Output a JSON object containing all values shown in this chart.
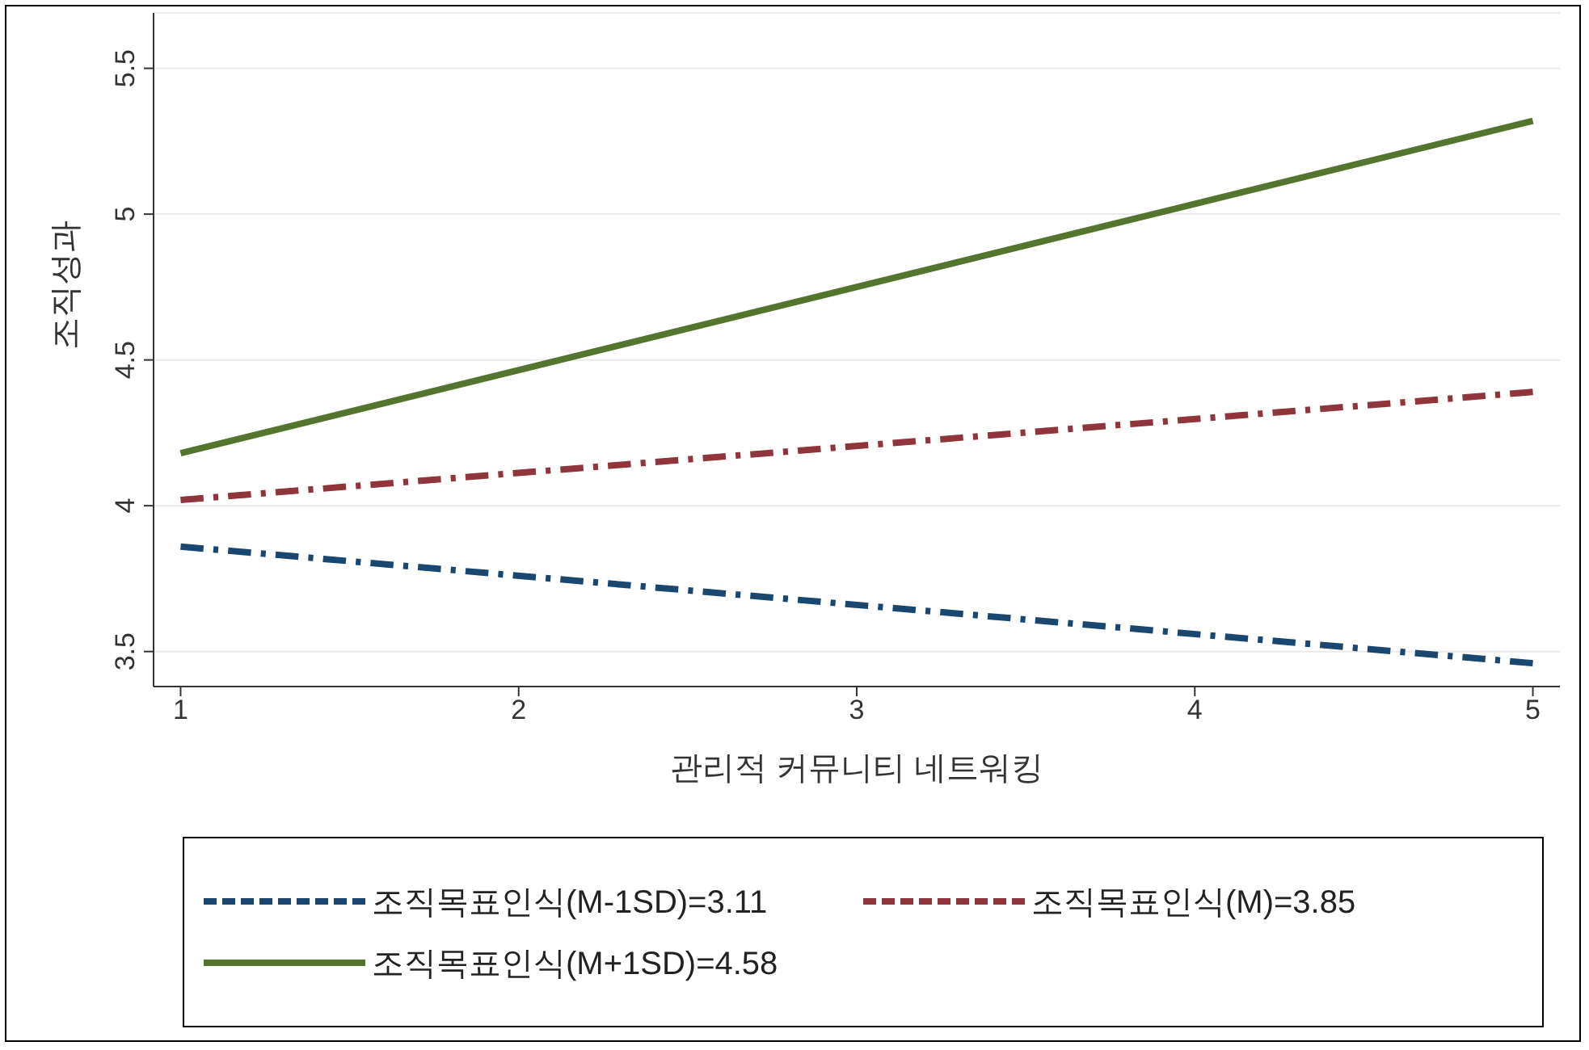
{
  "chart_data": {
    "type": "line",
    "xlabel": "관리적 커뮤니티 네트워킹",
    "ylabel": "조직성과",
    "x": [
      1,
      5
    ],
    "series": [
      {
        "name": "조직목표인식(M-1SD)=3.11",
        "color": "#1a476f",
        "values": [
          3.86,
          3.46
        ],
        "line_style": "dashed"
      },
      {
        "name": "조직목표인식(M)=3.85",
        "color": "#90353b",
        "values": [
          4.02,
          4.39
        ],
        "line_style": "dashed"
      },
      {
        "name": "조직목표인식(M+1SD)=4.58",
        "color": "#55752f",
        "values": [
          4.18,
          5.32
        ],
        "line_style": "solid"
      }
    ],
    "xlim": [
      0.92,
      5.08
    ],
    "xticks": [
      1,
      2,
      3,
      4,
      5
    ],
    "ylim": [
      3.38,
      5.69
    ],
    "yticks": [
      3.5,
      4,
      4.5,
      5,
      5.5
    ],
    "grid": "y",
    "legend": "bottom",
    "marker": "none"
  }
}
